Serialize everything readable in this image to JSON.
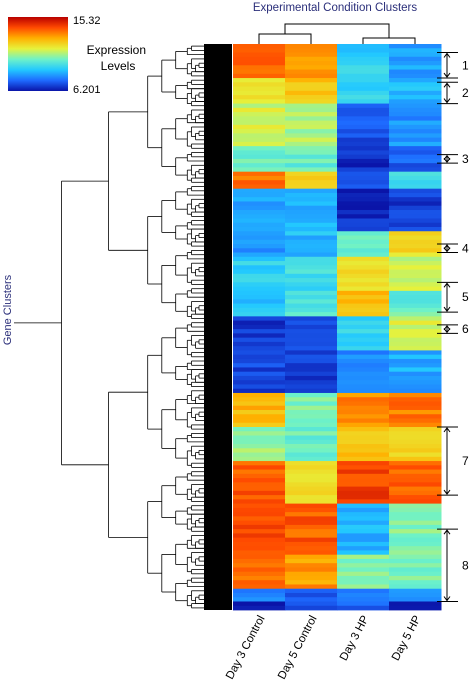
{
  "chart_data": {
    "type": "heatmap",
    "title": "Experimental Condition Clusters",
    "ylabel": "Gene Clusters",
    "columns": [
      "Day 3 Control",
      "Day 5 Control",
      "Day 3 HP",
      "Day 5 HP"
    ],
    "color_scale": {
      "label": "Expression Levels",
      "min": 6.201,
      "max": 15.32,
      "min_label": "6.201",
      "max_label": "15.32",
      "colors": [
        "#0a14a8",
        "#1e6aff",
        "#22c8ff",
        "#6ef2c8",
        "#e6f23c",
        "#ffb000",
        "#ff4a00",
        "#b80000"
      ]
    },
    "row_bands": [
      {
        "rows": 8,
        "values": [
          13.8,
          13.2,
          9.0,
          8.2
        ]
      },
      {
        "rows": 6,
        "values": [
          11.8,
          12.2,
          9.2,
          8.6
        ]
      },
      {
        "rows": 10,
        "values": [
          11.2,
          10.8,
          7.2,
          8.0
        ]
      },
      {
        "rows": 6,
        "values": [
          10.2,
          10.0,
          6.6,
          7.4
        ]
      },
      {
        "rows": 4,
        "values": [
          13.6,
          12.4,
          7.4,
          9.6
        ]
      },
      {
        "rows": 10,
        "values": [
          8.4,
          8.4,
          6.6,
          6.8
        ]
      },
      {
        "rows": 6,
        "values": [
          8.2,
          8.6,
          9.8,
          11.8
        ]
      },
      {
        "rows": 8,
        "values": [
          9.0,
          9.4,
          12.0,
          11.2
        ]
      },
      {
        "rows": 6,
        "values": [
          8.8,
          9.6,
          12.4,
          10.0
        ]
      },
      {
        "rows": 8,
        "values": [
          6.7,
          7.0,
          9.2,
          11.2
        ]
      },
      {
        "rows": 10,
        "values": [
          7.0,
          6.8,
          8.0,
          8.4
        ]
      },
      {
        "rows": 8,
        "values": [
          12.6,
          10.4,
          13.2,
          13.4
        ]
      },
      {
        "rows": 8,
        "values": [
          10.6,
          10.0,
          12.4,
          12.0
        ]
      },
      {
        "rows": 10,
        "values": [
          13.8,
          11.8,
          14.2,
          13.8
        ]
      },
      {
        "rows": 12,
        "values": [
          14.2,
          13.8,
          8.6,
          10.4
        ]
      },
      {
        "rows": 8,
        "values": [
          13.4,
          13.0,
          10.4,
          10.2
        ]
      },
      {
        "rows": 3,
        "values": [
          7.8,
          7.2,
          7.6,
          7.9
        ]
      },
      {
        "rows": 2,
        "values": [
          6.4,
          7.0,
          7.2,
          6.6
        ]
      }
    ],
    "gene_cluster_markers": [
      {
        "label": "1",
        "top_row": 2,
        "bottom_row": 8
      },
      {
        "label": "2",
        "top_row": 9,
        "bottom_row": 14
      },
      {
        "label": "3",
        "top_row": 26,
        "bottom_row": 28
      },
      {
        "label": "4",
        "top_row": 47,
        "bottom_row": 49
      },
      {
        "label": "5",
        "top_row": 56,
        "bottom_row": 63
      },
      {
        "label": "6",
        "top_row": 66,
        "bottom_row": 68
      },
      {
        "label": "7",
        "top_row": 90,
        "bottom_row": 106
      },
      {
        "label": "8",
        "top_row": 114,
        "bottom_row": 131
      }
    ]
  }
}
